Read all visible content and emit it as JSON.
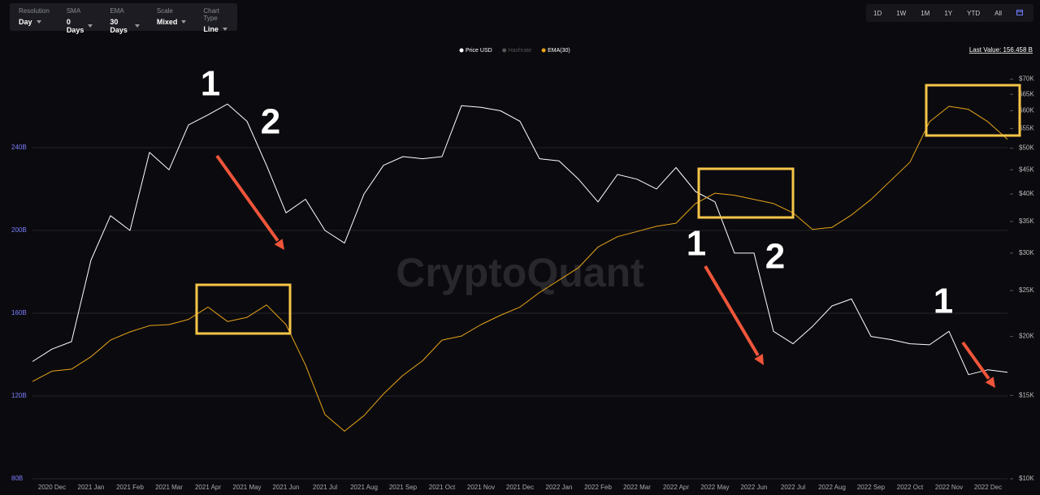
{
  "toolbar": [
    {
      "label": "Resolution",
      "value": "Day"
    },
    {
      "label": "SMA",
      "value": "0 Days"
    },
    {
      "label": "EMA",
      "value": "30 Days"
    },
    {
      "label": "Scale",
      "value": "Mixed"
    },
    {
      "label": "Chart Type",
      "value": "Line"
    }
  ],
  "range_buttons": [
    "1D",
    "1W",
    "1M",
    "1Y",
    "YTD",
    "All"
  ],
  "chart_data": {
    "type": "line",
    "watermark": "CryptoQuant",
    "last_value": "Last Value: 156.458 B",
    "categories": [
      null,
      "2020 Dec",
      null,
      "2021 Jan",
      null,
      "2021 Feb",
      null,
      "2021 Mar",
      null,
      "2021 Apr",
      null,
      "2021 May",
      null,
      "2021 Jun",
      null,
      "2021 Jul",
      null,
      "2021 Aug",
      null,
      "2021 Sep",
      null,
      "2021 Oct",
      null,
      "2021 Nov",
      null,
      "2021 Dec",
      null,
      "2022 Jan",
      null,
      "2022 Feb",
      null,
      "2022 Mar",
      null,
      "2022 Apr",
      null,
      "2022 May",
      null,
      "2022 Jun",
      null,
      "2022 Jul",
      null,
      "2022 Aug",
      null,
      "2022 Sep",
      null,
      "2022 Oct",
      null,
      "2022 Nov",
      null,
      "2022 Dec",
      null
    ],
    "series": [
      {
        "name": "Price USD",
        "color": "#ffffff",
        "axis": "y2",
        "values": [
          17700,
          18800,
          19500,
          29000,
          36000,
          33500,
          49000,
          45000,
          56000,
          58800,
          62000,
          57000,
          46000,
          36500,
          39000,
          33500,
          31500,
          40000,
          46000,
          48000,
          47500,
          48000,
          61500,
          61000,
          60000,
          57000,
          47500,
          47000,
          43000,
          38500,
          44000,
          43000,
          41000,
          45500,
          40500,
          38500,
          30000,
          30000,
          20500,
          19300,
          21000,
          23200,
          24000,
          20000,
          19700,
          19300,
          19200,
          20500,
          16600,
          17000,
          16800
        ]
      },
      {
        "name": "Hashrate",
        "color": "#555555",
        "hidden": true,
        "values": [
          null,
          null,
          null,
          null,
          null,
          null,
          null,
          null,
          null,
          null,
          null,
          null,
          null,
          null,
          null,
          null,
          null,
          null,
          null,
          null,
          null,
          null,
          null,
          null,
          null,
          null,
          null,
          null,
          null,
          null,
          null,
          null,
          null,
          null,
          null,
          null,
          null,
          null,
          null,
          null,
          null,
          null,
          null,
          null,
          null,
          null,
          null,
          null,
          null,
          null,
          null
        ]
      },
      {
        "name": "EMA(30)",
        "color": "#e8a317",
        "values": [
          127,
          132,
          133,
          139,
          147,
          151,
          154,
          154.5,
          157,
          163,
          156,
          158,
          164,
          154.5,
          135,
          111,
          103,
          110.5,
          121,
          130,
          137,
          147,
          149,
          154.5,
          159,
          163,
          170,
          176,
          182,
          192,
          197,
          199.5,
          202,
          203.5,
          213,
          218,
          217,
          215,
          213,
          208.5,
          200.5,
          201.5,
          207.5,
          215,
          224,
          233,
          252.5,
          260,
          258.5,
          252.5,
          244
        ]
      }
    ],
    "ylim": [
      80,
      280
    ],
    "yticks": [
      {
        "value": 80,
        "label": "80B"
      },
      {
        "value": 120,
        "label": "120B"
      },
      {
        "value": 160,
        "label": "160B"
      },
      {
        "value": 200,
        "label": "200B"
      },
      {
        "value": 240,
        "label": "240B"
      }
    ],
    "y2lim": [
      10000,
      75000
    ],
    "y2_log": true,
    "y2ticks": [
      {
        "value": 10000,
        "label": "$10K"
      },
      {
        "value": 15000,
        "label": "$15K"
      },
      {
        "value": 20000,
        "label": "$20K"
      },
      {
        "value": 25000,
        "label": "$25K"
      },
      {
        "value": 30000,
        "label": "$30K"
      },
      {
        "value": 35000,
        "label": "$35K"
      },
      {
        "value": 40000,
        "label": "$40K"
      },
      {
        "value": 45000,
        "label": "$45K"
      },
      {
        "value": 50000,
        "label": "$50K"
      },
      {
        "value": 55000,
        "label": "$55K"
      },
      {
        "value": 60000,
        "label": "$60K"
      },
      {
        "value": 65000,
        "label": "$65K"
      },
      {
        "value": 70000,
        "label": "$70K"
      }
    ],
    "grid": true,
    "annotations": [
      "1",
      "2",
      "1",
      "2",
      "1"
    ]
  }
}
